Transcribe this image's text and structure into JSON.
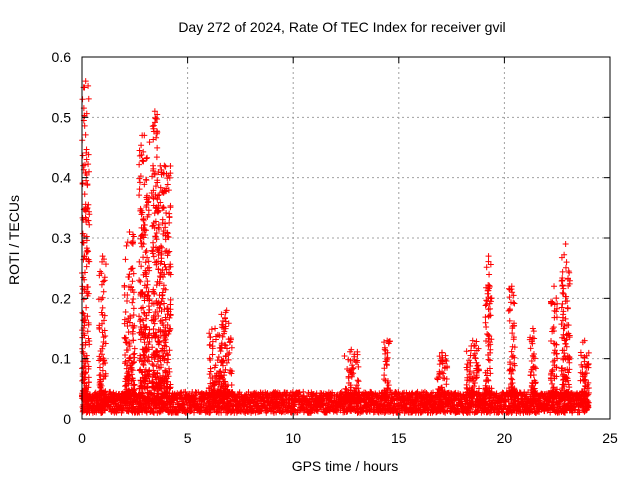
{
  "chart_data": {
    "type": "scatter",
    "title": "Day 272 of 2024, Rate Of TEC Index for receiver gvil",
    "xlabel": "GPS time / hours",
    "ylabel": "ROTI / TECUs",
    "xlim": [
      0,
      25
    ],
    "ylim": [
      0,
      0.6
    ],
    "xticks": [
      0,
      5,
      10,
      15,
      20,
      25
    ],
    "yticks": [
      0,
      0.1,
      0.2,
      0.3,
      0.4,
      0.5,
      0.6
    ],
    "xtick_labels": [
      "0",
      "5",
      "10",
      "15",
      "20",
      "25"
    ],
    "ytick_labels": [
      "0",
      "0.1",
      "0.2",
      "0.3",
      "0.4",
      "0.5",
      "0.6"
    ],
    "grid": true,
    "marker": "+",
    "series": [
      {
        "name": "ROTI",
        "color": "#ff0000",
        "x_range": [
          0,
          24
        ],
        "baseline": [
          0.01,
          0.045
        ],
        "bursts": [
          {
            "x_start": 0.0,
            "x_end": 0.35,
            "y_min": 0.03,
            "y_max": 0.56
          },
          {
            "x_start": 0.8,
            "x_end": 1.15,
            "y_min": 0.03,
            "y_max": 0.27
          },
          {
            "x_start": 2.0,
            "x_end": 2.5,
            "y_min": 0.04,
            "y_max": 0.31
          },
          {
            "x_start": 2.7,
            "x_end": 3.2,
            "y_min": 0.05,
            "y_max": 0.47
          },
          {
            "x_start": 3.3,
            "x_end": 3.6,
            "y_min": 0.05,
            "y_max": 0.51
          },
          {
            "x_start": 3.6,
            "x_end": 4.2,
            "y_min": 0.05,
            "y_max": 0.42
          },
          {
            "x_start": 6.0,
            "x_end": 6.6,
            "y_min": 0.04,
            "y_max": 0.15
          },
          {
            "x_start": 6.6,
            "x_end": 7.1,
            "y_min": 0.04,
            "y_max": 0.18
          },
          {
            "x_start": 12.4,
            "x_end": 13.1,
            "y_min": 0.03,
            "y_max": 0.115
          },
          {
            "x_start": 14.3,
            "x_end": 14.6,
            "y_min": 0.04,
            "y_max": 0.13
          },
          {
            "x_start": 16.8,
            "x_end": 17.3,
            "y_min": 0.04,
            "y_max": 0.11
          },
          {
            "x_start": 18.2,
            "x_end": 18.8,
            "y_min": 0.04,
            "y_max": 0.13
          },
          {
            "x_start": 19.1,
            "x_end": 19.4,
            "y_min": 0.04,
            "y_max": 0.27
          },
          {
            "x_start": 20.2,
            "x_end": 20.5,
            "y_min": 0.04,
            "y_max": 0.22
          },
          {
            "x_start": 21.2,
            "x_end": 21.5,
            "y_min": 0.04,
            "y_max": 0.15
          },
          {
            "x_start": 22.2,
            "x_end": 22.5,
            "y_min": 0.04,
            "y_max": 0.22
          },
          {
            "x_start": 22.7,
            "x_end": 23.1,
            "y_min": 0.04,
            "y_max": 0.29
          },
          {
            "x_start": 23.6,
            "x_end": 24.0,
            "y_min": 0.04,
            "y_max": 0.13
          }
        ]
      }
    ]
  }
}
